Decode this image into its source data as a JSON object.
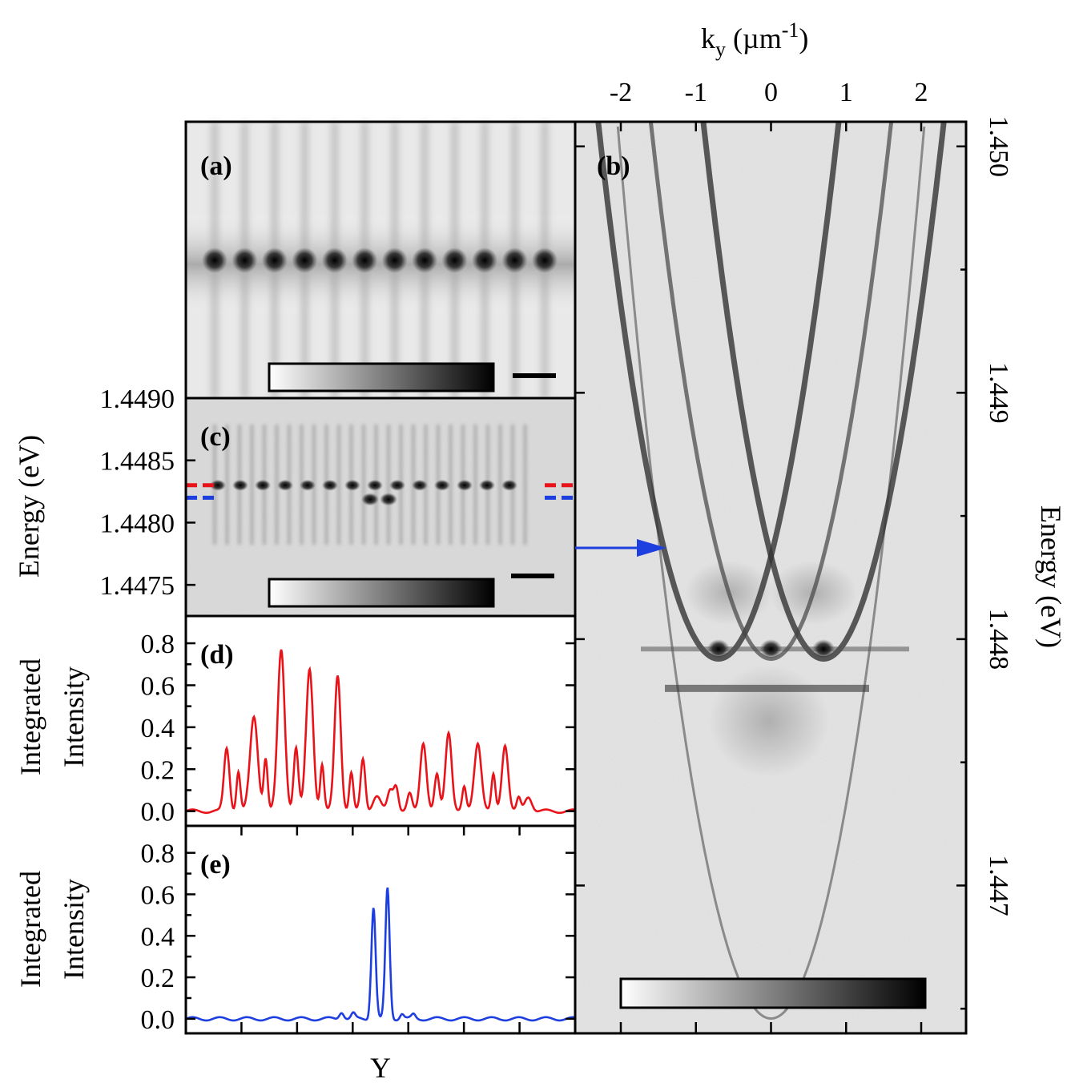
{
  "chart_data": [
    {
      "panel": "(a)",
      "type": "heatmap",
      "description_marks": "periodic chain of 12 bright spots",
      "spot_count": 12
    },
    {
      "panel": "(b)",
      "type": "heatmap",
      "xlabel_main": "k",
      "xlabel_sub": "y",
      "xlabel_unit_open": " (µm",
      "xlabel_unit_sup": "-1",
      "xlabel_unit_close": ")",
      "xticks": [
        "-2",
        "-1",
        "0",
        "1",
        "2"
      ],
      "xtick_values": [
        -2,
        -1,
        0,
        1,
        2
      ],
      "xlim": [
        -2.0,
        2.0
      ],
      "ylabel": "Energy (eV)",
      "yticks": [
        "1.450",
        "1.449",
        "1.448",
        "1.447"
      ],
      "ytick_values": [
        1.45,
        1.449,
        1.448,
        1.447
      ],
      "ylim": [
        1.4464,
        1.4501
      ]
    },
    {
      "panel": "(c)",
      "type": "heatmap",
      "ylabel": "Energy (eV)",
      "yticks": [
        "1.4490",
        "1.4485",
        "1.4480",
        "1.4475"
      ],
      "ytick_values": [
        1.449,
        1.4485,
        1.448,
        1.4475
      ],
      "ylim": [
        1.44725,
        1.449
      ],
      "red_cut_energy": 1.4483,
      "blue_cut_energy": 1.4482
    },
    {
      "panel": "(d)",
      "type": "line",
      "ylabel_line1": "Integrated",
      "ylabel_line2": "Intensity",
      "yticks": [
        "0.8",
        "0.6",
        "0.4",
        "0.2",
        "0.0"
      ],
      "ytick_values": [
        0.8,
        0.6,
        0.4,
        0.2,
        0.0
      ],
      "ylim": [
        -0.07,
        0.93
      ],
      "color": "#e8141a",
      "baseline": 0.0,
      "peaks": [
        {
          "x": 0.105,
          "y": 0.3,
          "w": 0.007
        },
        {
          "x": 0.135,
          "y": 0.19,
          "w": 0.005
        },
        {
          "x": 0.175,
          "y": 0.45,
          "w": 0.01
        },
        {
          "x": 0.205,
          "y": 0.25,
          "w": 0.005
        },
        {
          "x": 0.245,
          "y": 0.77,
          "w": 0.009
        },
        {
          "x": 0.283,
          "y": 0.3,
          "w": 0.006
        },
        {
          "x": 0.318,
          "y": 0.68,
          "w": 0.009
        },
        {
          "x": 0.35,
          "y": 0.22,
          "w": 0.005
        },
        {
          "x": 0.39,
          "y": 0.65,
          "w": 0.008
        },
        {
          "x": 0.425,
          "y": 0.18,
          "w": 0.005
        },
        {
          "x": 0.455,
          "y": 0.25,
          "w": 0.006
        },
        {
          "x": 0.49,
          "y": 0.07,
          "w": 0.01
        },
        {
          "x": 0.525,
          "y": 0.1,
          "w": 0.007
        },
        {
          "x": 0.54,
          "y": 0.12,
          "w": 0.006
        },
        {
          "x": 0.575,
          "y": 0.08,
          "w": 0.006
        },
        {
          "x": 0.61,
          "y": 0.33,
          "w": 0.008
        },
        {
          "x": 0.645,
          "y": 0.17,
          "w": 0.006
        },
        {
          "x": 0.675,
          "y": 0.38,
          "w": 0.008
        },
        {
          "x": 0.715,
          "y": 0.11,
          "w": 0.005
        },
        {
          "x": 0.75,
          "y": 0.33,
          "w": 0.009
        },
        {
          "x": 0.79,
          "y": 0.17,
          "w": 0.005
        },
        {
          "x": 0.82,
          "y": 0.32,
          "w": 0.008
        },
        {
          "x": 0.855,
          "y": 0.06,
          "w": 0.005
        },
        {
          "x": 0.88,
          "y": 0.07,
          "w": 0.009
        }
      ]
    },
    {
      "panel": "(e)",
      "type": "line",
      "xlabel": "Y",
      "ylabel_line1": "Integrated",
      "ylabel_line2": "Intensity",
      "yticks": [
        "0.8",
        "0.6",
        "0.4",
        "0.2",
        "0.0"
      ],
      "ytick_values": [
        0.8,
        0.6,
        0.4,
        0.2,
        0.0
      ],
      "ylim": [
        -0.07,
        0.93
      ],
      "color": "#1e3fe0",
      "baseline": 0.0,
      "peaks": [
        {
          "x": 0.4,
          "y": 0.035,
          "w": 0.006
        },
        {
          "x": 0.43,
          "y": 0.025,
          "w": 0.005
        },
        {
          "x": 0.482,
          "y": 0.54,
          "w": 0.0055
        },
        {
          "x": 0.518,
          "y": 0.63,
          "w": 0.0055
        },
        {
          "x": 0.555,
          "y": 0.025,
          "w": 0.005
        },
        {
          "x": 0.585,
          "y": 0.02,
          "w": 0.005
        }
      ]
    }
  ],
  "panel_labels": {
    "a": "(a)",
    "b": "(b)",
    "c": "(c)",
    "d": "(d)",
    "e": "(e)"
  },
  "colors": {
    "red": "#e8141a",
    "blue": "#1e3fe0",
    "frame": "#000000"
  }
}
